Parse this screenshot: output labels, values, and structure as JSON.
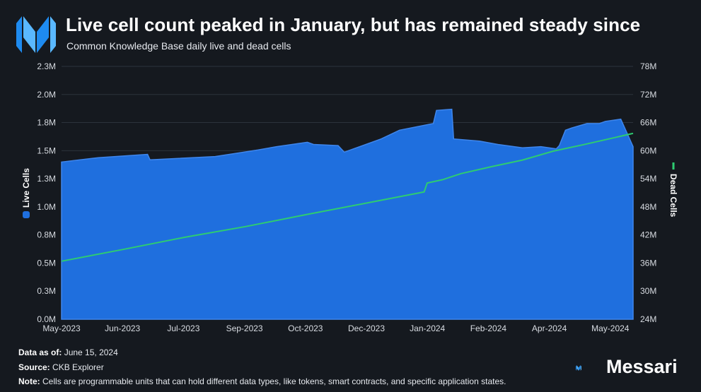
{
  "header": {
    "title": "Live cell count peaked in January, but has remained steady since",
    "subtitle": "Common Knowledge Base daily live and dead cells"
  },
  "chart_data": {
    "type": "area",
    "x_ticks": [
      "May-2023",
      "Jun-2023",
      "Jul-2023",
      "Sep-2023",
      "Oct-2023",
      "Dec-2023",
      "Jan-2024",
      "Feb-2024",
      "Apr-2024",
      "May-2024"
    ],
    "y_left": {
      "label": "Live Cells",
      "ticks": [
        "0.0M",
        "0.3M",
        "0.5M",
        "0.8M",
        "1.0M",
        "1.3M",
        "1.5M",
        "1.8M",
        "2.0M",
        "2.3M"
      ],
      "ylim": [
        0,
        2.3
      ]
    },
    "y_right": {
      "label": "Dead Cells",
      "ticks": [
        "24M",
        "30M",
        "36M",
        "42M",
        "48M",
        "54M",
        "60M",
        "66M",
        "72M",
        "78M"
      ],
      "ylim": [
        24,
        78
      ]
    },
    "grid": true,
    "series": [
      {
        "name": "Live Cells",
        "type": "area",
        "axis": "left",
        "color": "#1f6fde",
        "x": [
          0,
          0.6,
          1.4,
          1.44,
          2.5,
          3.2,
          3.5,
          4,
          4.1,
          4.5,
          4.6,
          5,
          5.2,
          5.5,
          6.05,
          6.1,
          6.35,
          6.38,
          6.8,
          7.1,
          7.5,
          7.8,
          8.05,
          8.1,
          8.2,
          8.3,
          8.55,
          8.75,
          8.85,
          9.1,
          9.3
        ],
        "values": [
          1.43,
          1.47,
          1.5,
          1.45,
          1.48,
          1.54,
          1.57,
          1.61,
          1.59,
          1.58,
          1.52,
          1.6,
          1.64,
          1.72,
          1.78,
          1.9,
          1.91,
          1.64,
          1.62,
          1.59,
          1.56,
          1.57,
          1.55,
          1.58,
          1.72,
          1.74,
          1.78,
          1.78,
          1.8,
          1.82,
          1.57
        ]
      },
      {
        "name": "Dead Cells",
        "type": "line",
        "axis": "right",
        "color": "#2ecc71",
        "x": [
          0,
          1,
          2,
          3,
          4,
          5,
          5.9,
          5.95,
          6.2,
          6.5,
          7,
          7.5,
          8,
          8.5,
          9,
          9.3
        ],
        "values": [
          36.4,
          38.9,
          41.5,
          43.8,
          46.4,
          48.9,
          51.2,
          53.1,
          53.8,
          55.1,
          56.6,
          58,
          59.9,
          61.3,
          62.8,
          63.7
        ]
      }
    ]
  },
  "footer": {
    "data_as_of_label": "Data as of:",
    "data_as_of_value": "June 15, 2024",
    "source_label": "Source:",
    "source_value": "CKB Explorer",
    "note_label": "Note:",
    "note_value": "Cells are programmable units that can hold different data types, like tokens, smart contracts, and specific application states."
  },
  "brand": {
    "name": "Messari"
  },
  "colors": {
    "background": "#15191f",
    "live": "#1f6fde",
    "dead": "#2ecc71"
  }
}
